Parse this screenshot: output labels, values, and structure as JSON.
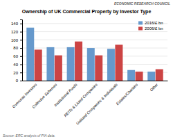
{
  "chart_data": {
    "type": "bar",
    "title": "Ownership of UK Commercial Property by Investor Type",
    "categories": [
      "Overseas Investors",
      "Collective Schemes",
      "Institutional Funds",
      "REITs & Listed Companies",
      "Unlisted Companies & Individuals",
      "Estates/Charities",
      "Other"
    ],
    "series": [
      {
        "name": "2016/£ bn",
        "color": "#6699CC",
        "values": [
          130,
          82,
          82,
          80,
          78,
          26,
          22
        ]
      },
      {
        "name": "2006/£ bn",
        "color": "#CC4444",
        "values": [
          76,
          62,
          96,
          62,
          88,
          22,
          28
        ]
      }
    ],
    "ylim": [
      0,
      150
    ],
    "yticks": [
      0,
      20,
      40,
      60,
      80,
      100,
      120,
      140
    ],
    "grid": true,
    "legend": "upper right",
    "annotations": [
      "Source: ERC analysis of PIA data.",
      "ECONOMIC RESEARCH COUNCIL"
    ]
  }
}
